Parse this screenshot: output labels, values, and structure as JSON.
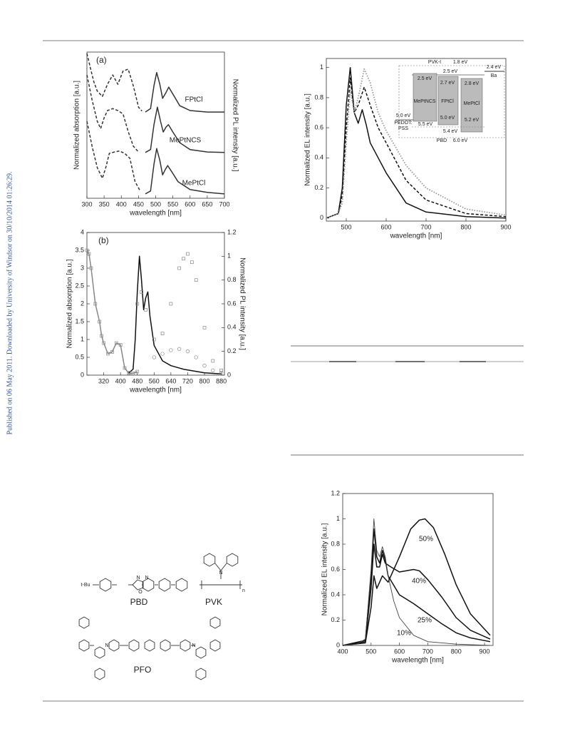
{
  "side_note": "Published on 06 May 2011. Downloaded by University of Windsor on 30/10/2014 01:26:29.",
  "chart_data": [
    {
      "type": "line",
      "tag": "(a)",
      "xlabel": "wavelength [nm]",
      "ylabel": "Normalized absorption [a.u.]",
      "y2label": "Normalized PL intensity [a.u.]",
      "annotations": [
        "FPtCl",
        "MePtNCS",
        "MePtCl"
      ],
      "xlim": [
        300,
        700
      ],
      "ylim": [
        0,
        3
      ],
      "xticks": [
        300,
        350,
        400,
        450,
        500,
        550,
        600,
        650,
        700
      ],
      "series": [
        {
          "color": "#333333",
          "style": "dashed",
          "x": [
            300,
            310,
            320,
            330,
            345,
            360,
            375,
            390,
            405,
            420,
            435,
            450,
            460
          ],
          "values": [
            2.97,
            2.68,
            2.39,
            2.2,
            2.09,
            2.34,
            2.53,
            2.34,
            2.61,
            2.65,
            2.31,
            1.87,
            1.79
          ]
        },
        {
          "color": "#333333",
          "style": "solid",
          "x": [
            470,
            485,
            495,
            503,
            512,
            520,
            530,
            538,
            550,
            570,
            600,
            650,
            700
          ],
          "values": [
            1.77,
            1.84,
            2.31,
            2.58,
            2.34,
            2.05,
            2.17,
            2.28,
            2.14,
            1.9,
            1.8,
            1.77,
            1.77
          ]
        },
        {
          "color": "#333333",
          "style": "dashed",
          "x": [
            300,
            315,
            330,
            340,
            350,
            360,
            375,
            390,
            405,
            420,
            435,
            450
          ],
          "values": [
            2.53,
            2.02,
            1.58,
            1.43,
            1.65,
            1.8,
            1.84,
            1.8,
            1.73,
            1.37,
            1.07,
            0.95
          ]
        },
        {
          "color": "#333333",
          "style": "solid",
          "x": [
            470,
            485,
            495,
            505,
            514,
            522,
            530,
            537,
            550,
            570,
            600,
            650,
            700
          ],
          "values": [
            0.94,
            1.0,
            1.51,
            1.87,
            1.58,
            1.36,
            1.46,
            1.51,
            1.36,
            1.14,
            1.0,
            0.95,
            0.94
          ]
        },
        {
          "color": "#333333",
          "style": "dashed",
          "x": [
            300,
            315,
            330,
            345,
            355,
            365,
            380,
            395,
            410,
            425,
            440,
            455
          ],
          "values": [
            1.58,
            1.07,
            0.63,
            0.41,
            0.63,
            0.92,
            0.95,
            0.97,
            0.92,
            0.82,
            0.34,
            0.15
          ]
        },
        {
          "color": "#333333",
          "style": "solid",
          "x": [
            470,
            485,
            495,
            503,
            512,
            520,
            528,
            535,
            548,
            565,
            600,
            650,
            700
          ],
          "values": [
            0.09,
            0.15,
            0.7,
            1.02,
            0.78,
            0.48,
            0.59,
            0.67,
            0.53,
            0.34,
            0.18,
            0.12,
            0.09
          ]
        }
      ]
    },
    {
      "type": "line",
      "tag": "(b)",
      "xlabel": "wavelength [nm]",
      "ylabel": "Normalized absorption [a.u.]",
      "y2label": "Normalized PL intensity [a.u.]",
      "xlim": [
        240,
        895
      ],
      "ylim": [
        0,
        4
      ],
      "y2lim": [
        0,
        1.2
      ],
      "xticks": [
        320,
        400,
        480,
        560,
        640,
        720,
        800,
        880
      ],
      "yticks": [
        0,
        0.5,
        1,
        1.5,
        2,
        2.5,
        3,
        3.5,
        4
      ],
      "y2ticks": [
        0,
        0.2,
        0.4,
        0.6,
        0.8,
        1,
        1.2
      ],
      "series": [
        {
          "color": "#888888",
          "style": "solid",
          "marker": "square",
          "x": [
            240,
            250,
            260,
            280,
            300,
            310,
            320,
            340,
            360,
            380,
            400,
            420,
            440,
            460,
            480
          ],
          "values": [
            3.5,
            3.4,
            3.0,
            2.0,
            1.5,
            1.1,
            0.9,
            0.6,
            0.65,
            0.9,
            0.85,
            0.2,
            0.05,
            0.05,
            0.1
          ]
        },
        {
          "color": "#111111",
          "style": "solid",
          "axis": "y2",
          "x": [
            440,
            460,
            470,
            480,
            490,
            500,
            510,
            520,
            530,
            540,
            560,
            600,
            640,
            700,
            800,
            880
          ],
          "values": [
            0.02,
            0.05,
            0.3,
            0.7,
            1.0,
            0.8,
            0.55,
            0.65,
            0.7,
            0.5,
            0.25,
            0.12,
            0.08,
            0.05,
            0.02,
            0.01
          ]
        },
        {
          "color": "#888888",
          "style": "none",
          "marker": "square",
          "axis": "y2",
          "x": [
            440,
            480,
            500,
            520,
            560,
            600,
            640,
            680,
            700,
            720,
            740,
            760,
            800,
            840,
            880
          ],
          "values": [
            0.02,
            0.6,
            0.7,
            0.55,
            0.3,
            0.35,
            0.6,
            0.9,
            0.98,
            1.02,
            0.95,
            0.8,
            0.4,
            0.12,
            0.04
          ]
        },
        {
          "color": "#888888",
          "style": "none",
          "marker": "circle",
          "axis": "y2",
          "x": [
            560,
            600,
            640,
            680,
            720,
            760,
            800,
            840,
            880
          ],
          "values": [
            0.15,
            0.18,
            0.21,
            0.22,
            0.2,
            0.15,
            0.08,
            0.04,
            0.02
          ]
        }
      ]
    },
    {
      "type": "line",
      "xlabel": "wavelength [nm]",
      "ylabel": "Normalized EL intensity [a.u.]",
      "xlim": [
        450,
        900
      ],
      "ylim": [
        -0.02,
        1.06
      ],
      "xticks": [
        500,
        600,
        700,
        800,
        900
      ],
      "yticks": [
        0,
        0.2,
        0.4,
        0.6,
        0.8,
        1
      ],
      "series": [
        {
          "color": "#111111",
          "style": "solid",
          "x": [
            450,
            480,
            490,
            500,
            510,
            520,
            530,
            540,
            550,
            560,
            580,
            600,
            650,
            700,
            800,
            900
          ],
          "values": [
            0,
            0.03,
            0.2,
            0.75,
            1.0,
            0.7,
            0.63,
            0.72,
            0.62,
            0.5,
            0.4,
            0.3,
            0.1,
            0.04,
            0.01,
            0
          ]
        },
        {
          "color": "#111111",
          "style": "dashed",
          "x": [
            450,
            480,
            490,
            500,
            510,
            520,
            530,
            545,
            560,
            580,
            600,
            650,
            700,
            800,
            900
          ],
          "values": [
            0,
            0.03,
            0.15,
            0.6,
            0.93,
            0.7,
            0.75,
            0.87,
            0.75,
            0.6,
            0.5,
            0.25,
            0.12,
            0.03,
            0.01
          ]
        },
        {
          "color": "#999999",
          "style": "dotted",
          "x": [
            450,
            480,
            490,
            500,
            510,
            520,
            530,
            545,
            560,
            580,
            600,
            650,
            700,
            800,
            900
          ],
          "values": [
            0,
            0.03,
            0.1,
            0.5,
            0.85,
            0.7,
            0.8,
            0.99,
            0.9,
            0.7,
            0.58,
            0.35,
            0.2,
            0.06,
            0.02
          ]
        }
      ]
    },
    {
      "type": "line",
      "xlabel": "wavelength [nm]",
      "ylabel": "Normalized EL intensity [a.u.]",
      "annotations": [
        "50%",
        "40%",
        "25%",
        "10%"
      ],
      "xlim": [
        400,
        930
      ],
      "ylim": [
        0,
        1.2
      ],
      "xticks": [
        400,
        500,
        600,
        700,
        800,
        900
      ],
      "yticks": [
        0,
        0.2,
        0.4,
        0.6,
        0.8,
        1,
        1.2
      ],
      "series": [
        {
          "color": "#111111",
          "style": "solid",
          "x": [
            400,
            480,
            500,
            510,
            520,
            530,
            540,
            560,
            600,
            640,
            670,
            690,
            720,
            760,
            800,
            850,
            920
          ],
          "values": [
            0,
            0.02,
            0.3,
            0.55,
            0.45,
            0.5,
            0.55,
            0.5,
            0.7,
            0.92,
            0.99,
            1.0,
            0.93,
            0.72,
            0.48,
            0.25,
            0.08
          ]
        },
        {
          "color": "#111111",
          "style": "solid",
          "x": [
            400,
            480,
            500,
            510,
            520,
            530,
            540,
            550,
            570,
            600,
            650,
            670,
            700,
            750,
            800,
            850,
            920
          ],
          "values": [
            0,
            0.03,
            0.45,
            0.8,
            0.62,
            0.62,
            0.72,
            0.65,
            0.62,
            0.58,
            0.6,
            0.59,
            0.52,
            0.38,
            0.22,
            0.12,
            0.05
          ]
        },
        {
          "color": "#111111",
          "style": "solid",
          "x": [
            400,
            480,
            500,
            510,
            520,
            530,
            540,
            550,
            560,
            600,
            650,
            700,
            750,
            800,
            850,
            920
          ],
          "values": [
            0,
            0.04,
            0.55,
            0.92,
            0.7,
            0.65,
            0.75,
            0.68,
            0.55,
            0.4,
            0.33,
            0.25,
            0.17,
            0.1,
            0.06,
            0.03
          ]
        },
        {
          "color": "#444444",
          "style": "thin",
          "x": [
            400,
            450,
            480,
            500,
            510,
            520,
            530,
            540,
            550,
            560,
            580,
            600,
            650,
            700,
            800,
            920
          ],
          "values": [
            0,
            0.01,
            0.05,
            0.6,
            1.0,
            0.75,
            0.7,
            0.78,
            0.7,
            0.55,
            0.35,
            0.22,
            0.08,
            0.03,
            0.01,
            0
          ]
        }
      ]
    }
  ],
  "energy_diagram": {
    "labels": [
      "PVK-I",
      "1.8 eV",
      "2.5 eV",
      "2.4 eV",
      "Ba",
      "2.5 eV",
      "MePtNCS",
      "2.7 eV",
      "FPtCl",
      "5.0 eV",
      "2.8 eV",
      "MePtCl",
      "5.2 eV",
      "5.0 eV",
      "PEDOT:",
      "PSS",
      "5.5 eV",
      "5.4 eV",
      "PBD",
      "6.0 eV"
    ]
  },
  "structures": {
    "labels": [
      "t-Bu",
      "N",
      "N",
      "O",
      "PBD",
      "N",
      "n",
      "PVK",
      "N",
      "N",
      "PFO"
    ]
  }
}
